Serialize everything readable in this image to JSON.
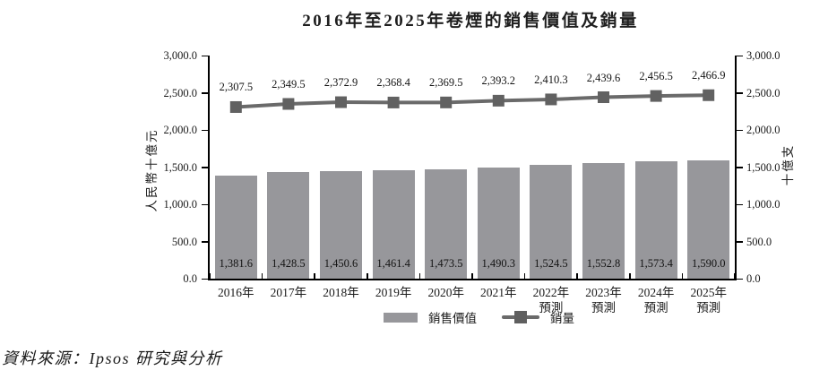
{
  "title": "2016年至2025年卷煙的銷售價值及銷量",
  "source": "資料來源：Ipsos 研究與分析",
  "legend": {
    "bar_label": "銷售價值",
    "line_label": "銷量"
  },
  "axes": {
    "left_title": "人民幣十億元",
    "right_title": "十億支",
    "min": 0,
    "max": 3000,
    "step": 500,
    "tick_labels": [
      "0.0",
      "500.0",
      "1,000.0",
      "1,500.0",
      "2,000.0",
      "2,500.0",
      "3,000.0"
    ]
  },
  "chart_data": {
    "type": "bar",
    "categories": [
      "2016年",
      "2017年",
      "2018年",
      "2019年",
      "2020年",
      "2021年",
      "2022年",
      "2023年",
      "2024年",
      "2025年"
    ],
    "category_notes": [
      "",
      "",
      "",
      "",
      "",
      "",
      "預測",
      "預測",
      "預測",
      "預測"
    ],
    "series": [
      {
        "name": "銷售價值",
        "type": "bar",
        "color": "#97979b",
        "values": [
          1381.6,
          1428.5,
          1450.6,
          1461.4,
          1473.5,
          1490.3,
          1524.5,
          1552.8,
          1573.4,
          1590.0
        ],
        "labels": [
          "1,381.6",
          "1,428.5",
          "1,450.6",
          "1,461.4",
          "1,473.5",
          "1,490.3",
          "1,524.5",
          "1,552.8",
          "1,573.4",
          "1,590.0"
        ]
      },
      {
        "name": "銷量",
        "type": "line",
        "color": "#6a6a6a",
        "values": [
          2307.5,
          2349.5,
          2372.9,
          2368.4,
          2369.5,
          2393.2,
          2410.3,
          2439.6,
          2456.5,
          2466.9
        ],
        "labels": [
          "2,307.5",
          "2,349.5",
          "2,372.9",
          "2,368.4",
          "2,369.5",
          "2,393.2",
          "2,410.3",
          "2,439.6",
          "2,456.5",
          "2,466.9"
        ]
      }
    ],
    "title": "2016年至2025年卷煙的銷售價值及銷量",
    "ylabel_left": "人民幣十億元",
    "ylabel_right": "十億支",
    "ylim": [
      0,
      3000
    ],
    "grid": false,
    "legend_position": "bottom"
  }
}
